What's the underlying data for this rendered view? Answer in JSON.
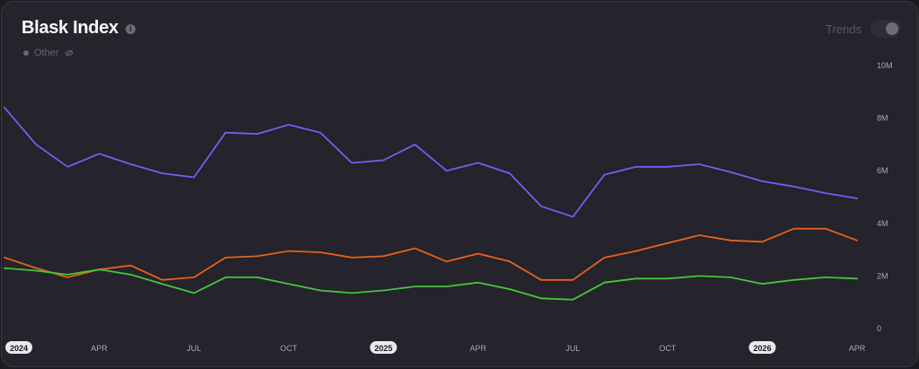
{
  "header": {
    "title": "Blask Index",
    "info_icon": "info-icon",
    "legend_label": "Other",
    "legend_icon": "eye-off-icon",
    "trends_label": "Trends"
  },
  "colors": {
    "series_1": "#6f5ff0",
    "series_2": "#e4611c",
    "series_3": "#45c43e"
  },
  "chart_data": {
    "type": "line",
    "title": "Blask Index",
    "ylim": [
      0,
      10000000
    ],
    "y_ticks": [
      "0",
      "2M",
      "4M",
      "6M",
      "8M",
      "10M"
    ],
    "y_tick_values": [
      0,
      2000000,
      4000000,
      6000000,
      8000000,
      10000000
    ],
    "x_ticks": [
      {
        "label": "2024",
        "year": true,
        "index": 0
      },
      {
        "label": "APR",
        "year": false,
        "index": 3
      },
      {
        "label": "JUL",
        "year": false,
        "index": 6
      },
      {
        "label": "OCT",
        "year": false,
        "index": 9
      },
      {
        "label": "2025",
        "year": true,
        "index": 12
      },
      {
        "label": "APR",
        "year": false,
        "index": 15
      },
      {
        "label": "JUL",
        "year": false,
        "index": 18
      },
      {
        "label": "OCT",
        "year": false,
        "index": 21
      },
      {
        "label": "2026",
        "year": true,
        "index": 24
      },
      {
        "label": "APR",
        "year": false,
        "index": 27
      }
    ],
    "x": [
      "2024-01",
      "2024-02",
      "2024-03",
      "2024-04",
      "2024-05",
      "2024-06",
      "2024-07",
      "2024-08",
      "2024-09",
      "2024-10",
      "2024-11",
      "2024-12",
      "2025-01",
      "2025-02",
      "2025-03",
      "2025-04",
      "2025-05",
      "2025-06",
      "2025-07",
      "2025-08",
      "2025-09",
      "2025-10",
      "2025-11",
      "2025-12",
      "2026-01",
      "2026-02",
      "2026-03",
      "2026-04"
    ],
    "series": [
      {
        "values": [
          8400000,
          7000000,
          6150000,
          6650000,
          6250000,
          5900000,
          5750000,
          7450000,
          7400000,
          7750000,
          7450000,
          6300000,
          6400000,
          7000000,
          6000000,
          6300000,
          5900000,
          4650000,
          4250000,
          5850000,
          6150000,
          6150000,
          6250000,
          5950000,
          5600000,
          5400000,
          5150000,
          4950000
        ]
      },
      {
        "values": [
          2700000,
          2300000,
          1950000,
          2250000,
          2400000,
          1850000,
          1950000,
          2700000,
          2750000,
          2950000,
          2900000,
          2700000,
          2750000,
          3050000,
          2550000,
          2850000,
          2550000,
          1850000,
          1850000,
          2700000,
          2950000,
          3250000,
          3550000,
          3350000,
          3300000,
          3800000,
          3800000,
          3350000
        ]
      },
      {
        "values": [
          2300000,
          2200000,
          2050000,
          2250000,
          2050000,
          1700000,
          1350000,
          1950000,
          1950000,
          1700000,
          1450000,
          1350000,
          1450000,
          1600000,
          1600000,
          1750000,
          1500000,
          1150000,
          1100000,
          1750000,
          1900000,
          1900000,
          2000000,
          1950000,
          1700000,
          1850000,
          1950000,
          1900000
        ]
      }
    ]
  }
}
